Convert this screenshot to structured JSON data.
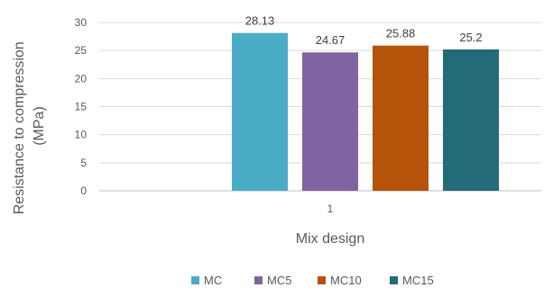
{
  "chart_data": {
    "type": "bar",
    "categories": [
      "1"
    ],
    "series": [
      {
        "name": "MC",
        "values": [
          28.13
        ],
        "color": "#4BACC6",
        "label": "28.13"
      },
      {
        "name": "MC5",
        "values": [
          24.67
        ],
        "color": "#8064A2",
        "label": "24.67"
      },
      {
        "name": "MC10",
        "values": [
          25.88
        ],
        "color": "#B45309",
        "label": "25.88"
      },
      {
        "name": "MC15",
        "values": [
          25.2
        ],
        "color": "#246B7A",
        "label": "25.2"
      }
    ],
    "title": "",
    "xlabel": "Mix design",
    "ylabel_lines": [
      "Resistance to compression",
      "(MPa)"
    ],
    "ylim": [
      0,
      30
    ],
    "yticks": [
      0,
      5,
      10,
      15,
      20,
      25,
      30
    ],
    "grid": true,
    "legend_position": "bottom"
  }
}
